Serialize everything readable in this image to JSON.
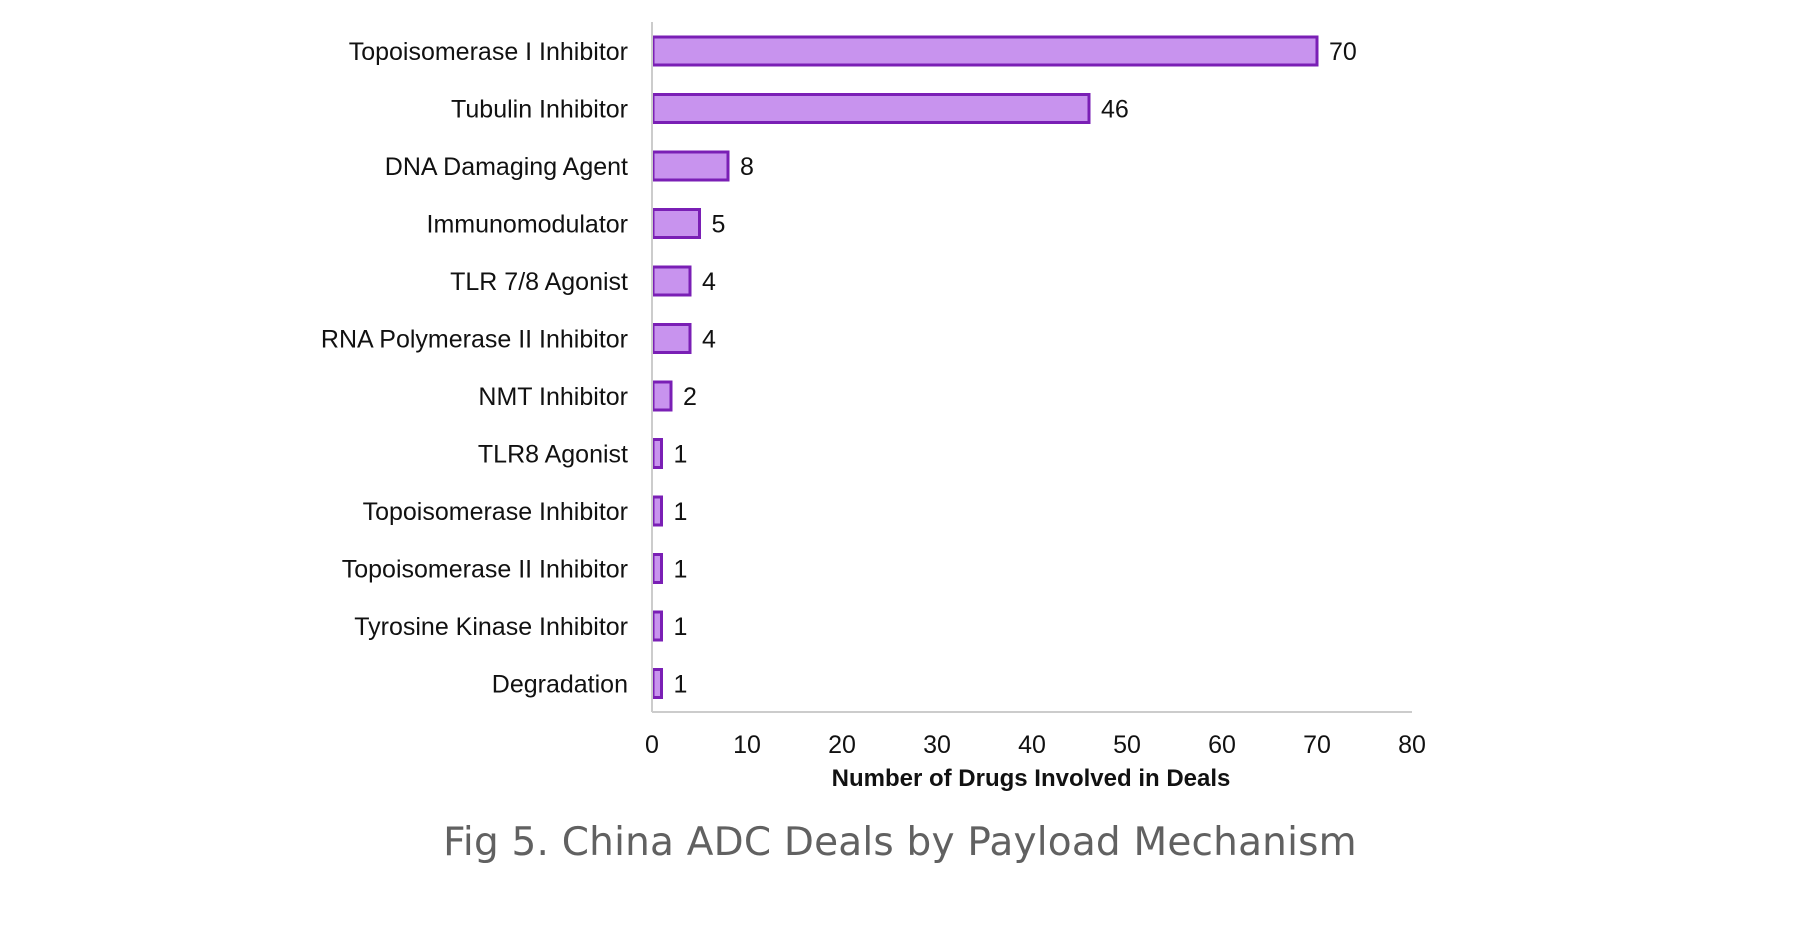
{
  "chart_data": {
    "type": "bar",
    "orientation": "horizontal",
    "categories": [
      "Topoisomerase I Inhibitor",
      "Tubulin Inhibitor",
      "DNA Damaging Agent",
      "Immunomodulator",
      "TLR 7/8 Agonist",
      "RNA Polymerase II Inhibitor",
      "NMT Inhibitor",
      "TLR8 Agonist",
      "Topoisomerase Inhibitor",
      "Topoisomerase II Inhibitor",
      "Tyrosine Kinase Inhibitor",
      "Degradation"
    ],
    "values": [
      70,
      46,
      8,
      5,
      4,
      4,
      2,
      1,
      1,
      1,
      1,
      1
    ],
    "title": "",
    "xlabel": "Number of Drugs Involved in Deals",
    "ylabel": "",
    "xlim": [
      0,
      80
    ],
    "xticks": [
      0,
      10,
      20,
      30,
      40,
      50,
      60,
      70,
      80
    ],
    "data_labels": true,
    "grid": false,
    "legend": "none",
    "colors": {
      "bar_fill": "#c893ee",
      "bar_stroke": "#7a1fb5",
      "axis": "#cccccc",
      "text": "#111111"
    }
  },
  "caption": "Fig 5. China ADC Deals by Payload Mechanism"
}
